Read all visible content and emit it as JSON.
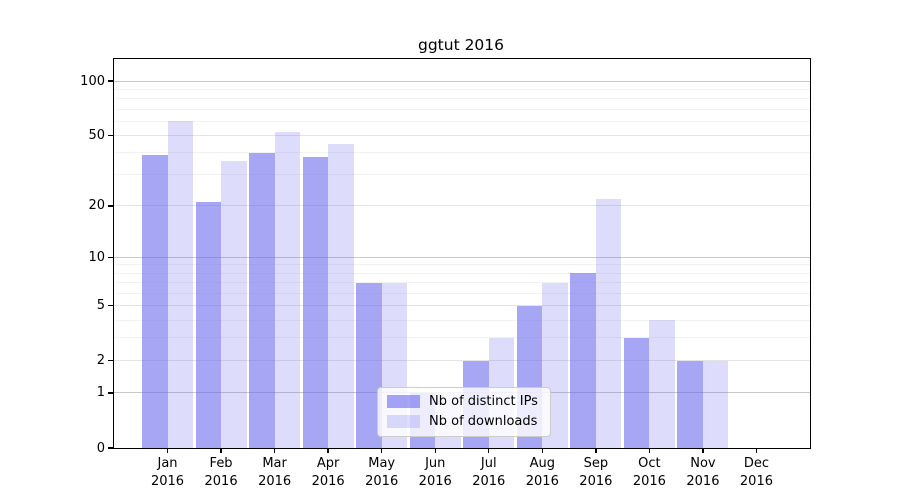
{
  "title": "ggtut 2016",
  "chart_data": {
    "type": "bar",
    "title": "ggtut 2016",
    "y_scale": "log1p",
    "months": [
      "Jan",
      "Feb",
      "Mar",
      "Apr",
      "May",
      "Jun",
      "Jul",
      "Aug",
      "Sep",
      "Oct",
      "Nov",
      "Dec"
    ],
    "year_label": "2016",
    "series": [
      {
        "name": "Nb of distinct IPs",
        "color": "rgba(102,102,238,0.58)",
        "values": [
          39,
          21,
          40,
          38,
          7,
          1,
          2,
          5,
          8,
          3,
          2,
          0
        ]
      },
      {
        "name": "Nb of downloads",
        "color": "rgba(102,102,238,0.22)",
        "values": [
          60,
          36,
          52,
          45,
          7,
          1,
          3,
          7,
          22,
          4,
          2,
          0
        ]
      }
    ],
    "y_ticks": [
      0,
      1,
      2,
      5,
      10,
      20,
      50,
      100
    ],
    "y_decade_gridlines": [
      1,
      10,
      100
    ],
    "y_major_gridlines": [
      2,
      5,
      20,
      50
    ],
    "y_minor_gridlines": [
      3,
      4,
      6,
      7,
      8,
      9,
      30,
      40,
      60,
      70,
      80,
      90
    ],
    "ylim": [
      0,
      132
    ],
    "grid": "on",
    "legend_position": "lower center",
    "colors": {
      "decade_gridline": "#c9c9c9",
      "major_gridline": "#e4e4e4",
      "minor_gridline": "#f2f2f2",
      "spine": "#000000"
    }
  }
}
